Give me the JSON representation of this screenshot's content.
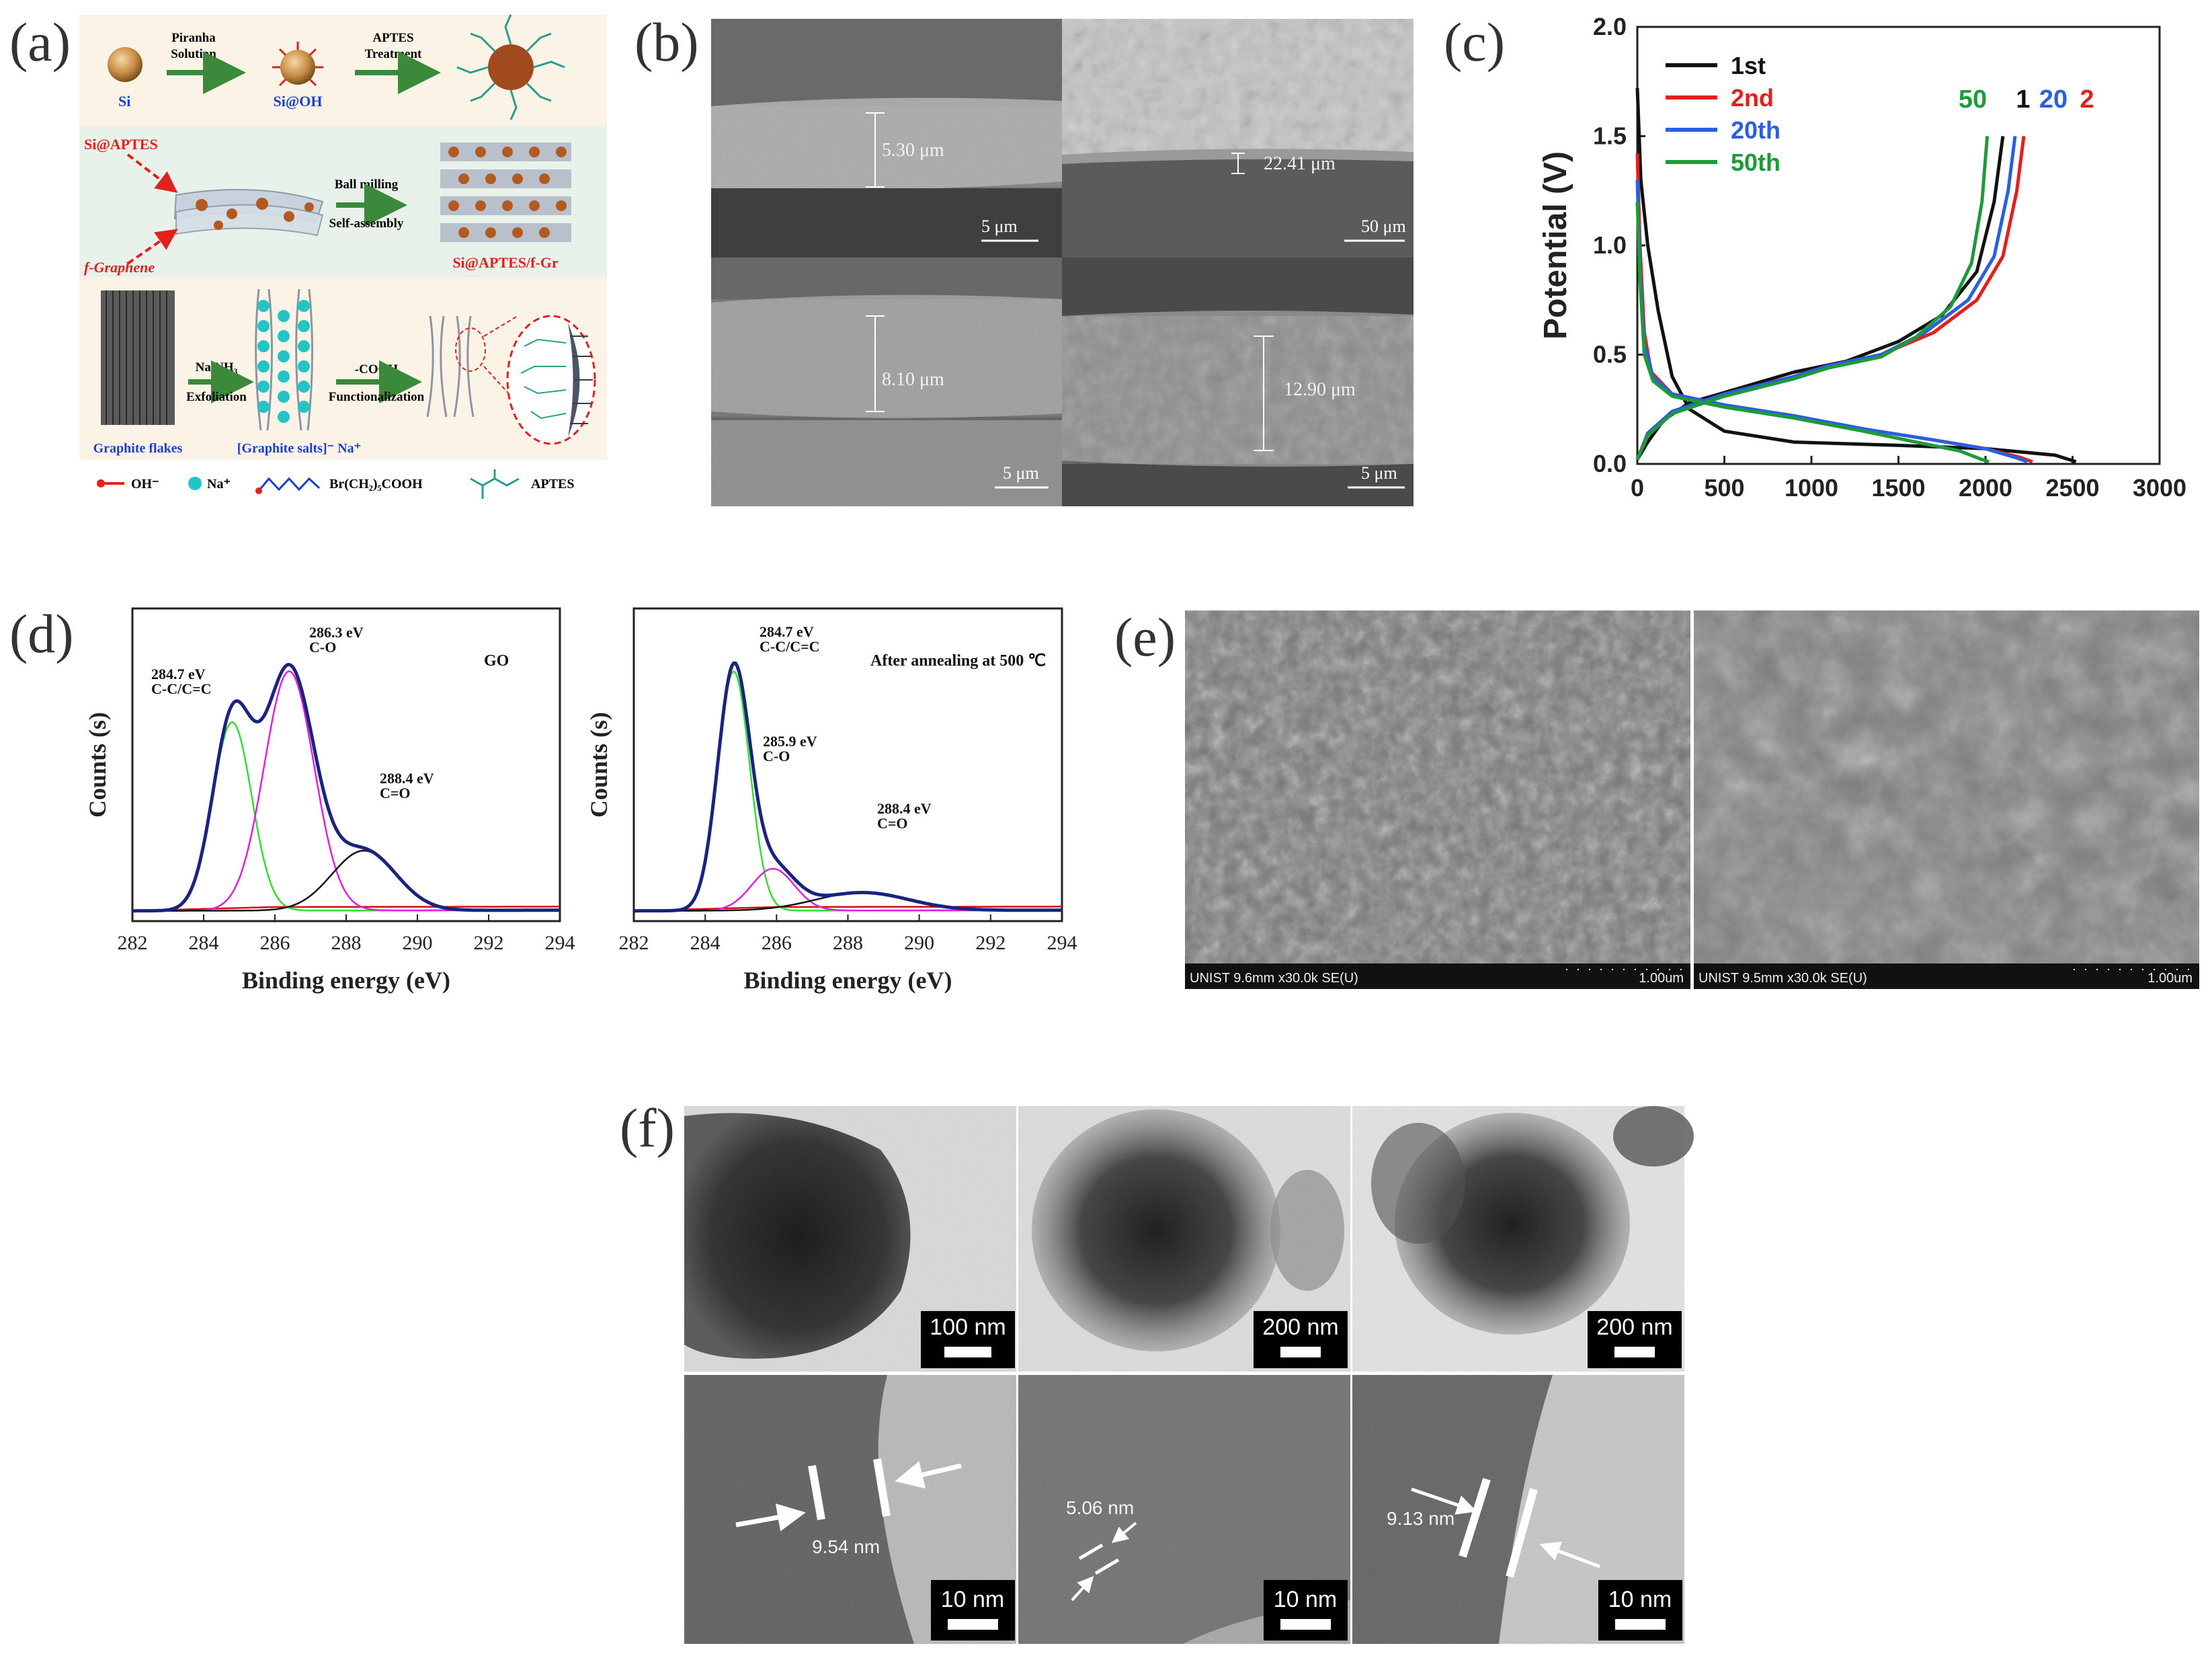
{
  "panels": {
    "a": {
      "label": "(a)",
      "row1": {
        "si": "Si",
        "step1": [
          "Piranha",
          "Solution"
        ],
        "si_oh": "Si@OH",
        "step2": [
          "APTES",
          "Treatment"
        ]
      },
      "row2": {
        "si_aptes": "Si@APTES",
        "f_graphene": "f-Graphene",
        "step": [
          "Ball milling",
          "Self-assembly"
        ],
        "product": "Si@APTES/f-Gr"
      },
      "row3": {
        "graphite": "Graphite flakes",
        "step1": [
          "Na/NH₃",
          "Exfoliation"
        ],
        "salts": "[Graphite salts]⁻ Na⁺",
        "step2": [
          "-COOH",
          "Functionalization"
        ]
      },
      "legend": [
        "OH⁻",
        "Na⁺",
        "Br(CH₂)₅COOH",
        "APTES"
      ]
    },
    "b": {
      "label": "(b)",
      "tiles": [
        {
          "measure": "5.30 μm",
          "scale": "5 μm"
        },
        {
          "measure": "22.41 μm",
          "scale": "50 μm"
        },
        {
          "measure": "8.10 μm",
          "scale": "5 μm"
        },
        {
          "measure": "12.90 μm",
          "scale": "5 μm"
        }
      ]
    },
    "c": {
      "label": "(c)"
    },
    "d": {
      "label": "(d)",
      "left": {
        "tag": "GO",
        "peaks": [
          {
            "ev": "284.7 eV",
            "bond": "C-C/C=C"
          },
          {
            "ev": "286.3 eV",
            "bond": "C-O"
          },
          {
            "ev": "288.4 eV",
            "bond": "C=O"
          }
        ]
      },
      "right": {
        "tag": "After annealing at  500 ℃",
        "peaks": [
          {
            "ev": "284.7 eV",
            "bond": "C-C/C=C"
          },
          {
            "ev": "285.9 eV",
            "bond": "C-O"
          },
          {
            "ev": "288.4 eV",
            "bond": "C=O"
          }
        ]
      }
    },
    "e": {
      "label": "(e)",
      "tiles": [
        {
          "info": "UNIST 9.6mm x30.0k SE(U)",
          "scale": "1.00um"
        },
        {
          "info": "UNIST 9.5mm x30.0k SE(U)",
          "scale": "1.00um"
        }
      ]
    },
    "f": {
      "label": "(f)",
      "top": [
        "100 nm",
        "200 nm",
        "200 nm"
      ],
      "bottom": [
        {
          "measure": "9.54 nm",
          "scale": "10 nm"
        },
        {
          "measure": "5.06 nm",
          "scale": "10 nm"
        },
        {
          "measure": "9.13 nm",
          "scale": "10 nm"
        }
      ]
    }
  },
  "colors": {
    "black": "#111111",
    "red": "#e3201b",
    "blue": "#2a5fe0",
    "green": "#1f9a3a",
    "xps_envelope": "#1a237e",
    "xps_green": "#33dd33",
    "xps_magenta": "#e020e0",
    "xps_red": "#d01010",
    "bg_row1": "#fbf4e6",
    "bg_row2": "#e8f1ea",
    "bg_row3": "#fbf4e6"
  },
  "chart_data": [
    {
      "type": "line",
      "panel": "c",
      "ylabel": "Potential (V)",
      "xlabel": "",
      "xlim": [
        0,
        3000
      ],
      "ylim": [
        0,
        2.0
      ],
      "xticks": [
        "0",
        "500",
        "1000",
        "1500",
        "2000",
        "2500",
        "3000"
      ],
      "yticks": [
        "0.0",
        "0.5",
        "1.0",
        "1.5",
        "2.0"
      ],
      "legend_position": "top-left",
      "end_labels": [
        "50",
        "1",
        "20",
        "2"
      ],
      "series": [
        {
          "name": "1st",
          "color": "black",
          "discharge": [
            [
              0,
              1.72
            ],
            [
              20,
              1.3
            ],
            [
              60,
              1.0
            ],
            [
              120,
              0.7
            ],
            [
              200,
              0.4
            ],
            [
              300,
              0.25
            ],
            [
              500,
              0.15
            ],
            [
              900,
              0.1
            ],
            [
              1500,
              0.085
            ],
            [
              2000,
              0.07
            ],
            [
              2400,
              0.04
            ],
            [
              2520,
              0.01
            ]
          ],
          "charge": [
            [
              0,
              0.02
            ],
            [
              60,
              0.1
            ],
            [
              150,
              0.2
            ],
            [
              300,
              0.28
            ],
            [
              600,
              0.35
            ],
            [
              900,
              0.42
            ],
            [
              1200,
              0.47
            ],
            [
              1500,
              0.56
            ],
            [
              1750,
              0.68
            ],
            [
              1950,
              0.88
            ],
            [
              2050,
              1.2
            ],
            [
              2100,
              1.5
            ]
          ]
        },
        {
          "name": "2nd",
          "color": "red",
          "discharge": [
            [
              0,
              1.42
            ],
            [
              15,
              1.0
            ],
            [
              40,
              0.6
            ],
            [
              80,
              0.42
            ],
            [
              200,
              0.32
            ],
            [
              500,
              0.27
            ],
            [
              900,
              0.22
            ],
            [
              1300,
              0.16
            ],
            [
              1700,
              0.11
            ],
            [
              2000,
              0.07
            ],
            [
              2200,
              0.03
            ],
            [
              2270,
              0.01
            ]
          ],
          "charge": [
            [
              0,
              0.02
            ],
            [
              60,
              0.14
            ],
            [
              200,
              0.24
            ],
            [
              500,
              0.32
            ],
            [
              900,
              0.4
            ],
            [
              1100,
              0.45
            ],
            [
              1400,
              0.5
            ],
            [
              1700,
              0.6
            ],
            [
              1950,
              0.75
            ],
            [
              2100,
              0.95
            ],
            [
              2180,
              1.25
            ],
            [
              2220,
              1.5
            ]
          ]
        },
        {
          "name": "20th",
          "color": "blue",
          "discharge": [
            [
              0,
              1.3
            ],
            [
              15,
              0.9
            ],
            [
              40,
              0.55
            ],
            [
              90,
              0.4
            ],
            [
              200,
              0.32
            ],
            [
              500,
              0.27
            ],
            [
              900,
              0.22
            ],
            [
              1300,
              0.16
            ],
            [
              1700,
              0.11
            ],
            [
              2000,
              0.07
            ],
            [
              2170,
              0.03
            ],
            [
              2240,
              0.01
            ]
          ],
          "charge": [
            [
              0,
              0.02
            ],
            [
              60,
              0.14
            ],
            [
              200,
              0.24
            ],
            [
              500,
              0.32
            ],
            [
              900,
              0.4
            ],
            [
              1100,
              0.45
            ],
            [
              1400,
              0.5
            ],
            [
              1650,
              0.6
            ],
            [
              1900,
              0.75
            ],
            [
              2050,
              0.95
            ],
            [
              2130,
              1.25
            ],
            [
              2170,
              1.5
            ]
          ]
        },
        {
          "name": "50th",
          "color": "green",
          "discharge": [
            [
              0,
              1.2
            ],
            [
              15,
              0.85
            ],
            [
              40,
              0.5
            ],
            [
              90,
              0.38
            ],
            [
              200,
              0.31
            ],
            [
              500,
              0.26
            ],
            [
              900,
              0.21
            ],
            [
              1300,
              0.15
            ],
            [
              1600,
              0.1
            ],
            [
              1850,
              0.06
            ],
            [
              1980,
              0.02
            ],
            [
              2020,
              0.01
            ]
          ],
          "charge": [
            [
              0,
              0.02
            ],
            [
              60,
              0.13
            ],
            [
              200,
              0.23
            ],
            [
              500,
              0.31
            ],
            [
              900,
              0.39
            ],
            [
              1100,
              0.44
            ],
            [
              1400,
              0.49
            ],
            [
              1600,
              0.58
            ],
            [
              1800,
              0.72
            ],
            [
              1920,
              0.92
            ],
            [
              1980,
              1.2
            ],
            [
              2010,
              1.5
            ]
          ]
        }
      ]
    },
    {
      "type": "line",
      "panel": "d-left",
      "xlabel": "Binding energy (eV)",
      "ylabel": "Counts (s)",
      "xlim": [
        282,
        294
      ],
      "xticks": [
        "282",
        "284",
        "286",
        "288",
        "290",
        "292",
        "294"
      ],
      "ylim": [
        0,
        1
      ],
      "peaks": [
        {
          "label": "C-C/C=C",
          "center": 284.8,
          "height": 0.63,
          "width": 0.55,
          "color": "xps_green"
        },
        {
          "label": "C-O",
          "center": 286.4,
          "height": 0.8,
          "width": 0.7,
          "color": "xps_magenta"
        },
        {
          "label": "C=O",
          "center": 288.5,
          "height": 0.2,
          "width": 0.9,
          "color": "black"
        }
      ],
      "baseline": [
        [
          282,
          0.0
        ],
        [
          294,
          0.0
        ]
      ]
    },
    {
      "type": "line",
      "panel": "d-right",
      "xlabel": "Binding energy (eV)",
      "ylabel": "Counts (s)",
      "xlim": [
        282,
        294
      ],
      "xticks": [
        "282",
        "284",
        "286",
        "288",
        "290",
        "292",
        "294"
      ],
      "ylim": [
        0,
        1
      ],
      "peaks": [
        {
          "label": "C-C/C=C",
          "center": 284.8,
          "height": 0.8,
          "width": 0.45,
          "color": "xps_green"
        },
        {
          "label": "C-O",
          "center": 285.9,
          "height": 0.14,
          "width": 0.6,
          "color": "xps_magenta"
        },
        {
          "label": "C=O",
          "center": 288.4,
          "height": 0.06,
          "width": 1.3,
          "color": "black"
        }
      ],
      "baseline": [
        [
          282,
          0.0
        ],
        [
          294,
          0.0
        ]
      ]
    }
  ]
}
